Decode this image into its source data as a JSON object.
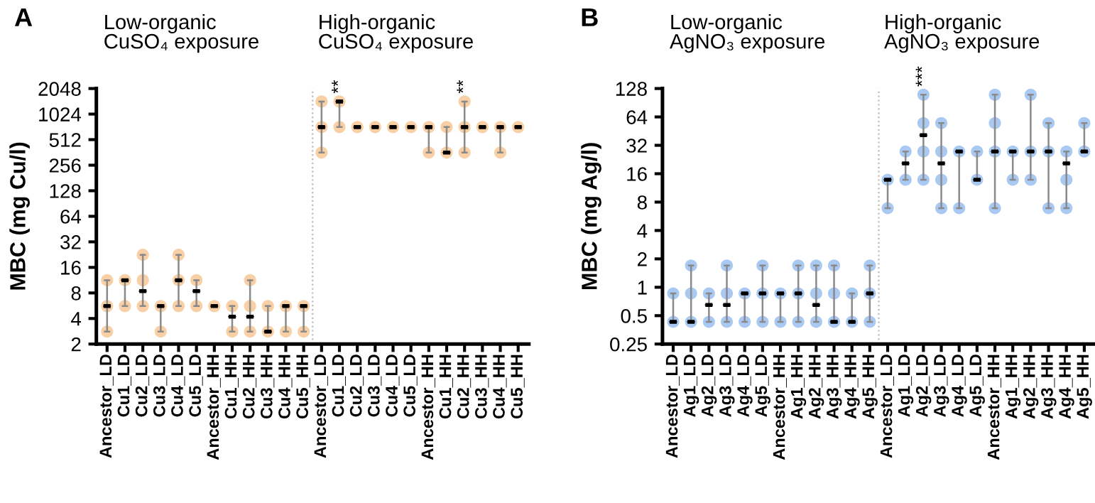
{
  "chart_data": [
    {
      "type": "scatter",
      "title": "A",
      "ylabel": "MBC (mg Cu/l)",
      "annotations": [
        "Low-organic\nCuSO₄ exposure",
        "High-organic\nCuSO₄ exposure"
      ],
      "categories": [
        "Ancestor_LD",
        "Cu1_LD",
        "Cu2_LD",
        "Cu3_LD",
        "Cu4_LD",
        "Cu5_LD",
        "Ancestor_HH",
        "Cu1_HH",
        "Cu2_HH",
        "Cu3_HH",
        "Cu4_HH",
        "Cu5_HH",
        "Ancestor_LD",
        "Cu1_LD",
        "Cu2_LD",
        "Cu3_LD",
        "Cu4_LD",
        "Cu5_LD",
        "Ancestor_HH",
        "Cu1_HH",
        "Cu2_HH",
        "Cu3_HH",
        "Cu4_HH",
        "Cu5_HH"
      ],
      "log": "y",
      "ylim": [
        2,
        2048
      ],
      "yticks": [
        2,
        4,
        8,
        16,
        32,
        64,
        128,
        256,
        512,
        1024,
        2048
      ],
      "grid": false,
      "legend": false,
      "marker": "circle",
      "series": [
        {
          "color": "#f9cfa5",
          "values": [
            2.8,
            5.6,
            5.6,
            2.8,
            5.6,
            5.6,
            5.6,
            2.8,
            2.8,
            2.8,
            2.8,
            2.8,
            360,
            720,
            720,
            720,
            720,
            720,
            360,
            360,
            360,
            720,
            360,
            720
          ]
        },
        {
          "color": "#f9cfa5",
          "values": [
            5.6,
            11.3,
            11.3,
            5.6,
            11.3,
            11.3,
            null,
            5.6,
            5.6,
            5.6,
            5.6,
            5.6,
            720,
            1440,
            null,
            null,
            null,
            null,
            720,
            720,
            720,
            null,
            720,
            null
          ],
          "value_labels": [
            null,
            null,
            null,
            null,
            null,
            null,
            null,
            null,
            null,
            null,
            null,
            null,
            null,
            "**",
            null,
            null,
            null,
            null,
            null,
            null,
            null,
            null,
            null,
            null
          ]
        },
        {
          "color": "#f9cfa5",
          "values": [
            11.3,
            null,
            22.5,
            null,
            22.5,
            null,
            null,
            null,
            11.3,
            null,
            null,
            null,
            1440,
            null,
            null,
            null,
            null,
            null,
            null,
            null,
            1440,
            null,
            null,
            null
          ],
          "value_labels": [
            null,
            null,
            null,
            null,
            null,
            null,
            null,
            null,
            null,
            null,
            null,
            null,
            null,
            null,
            null,
            null,
            null,
            null,
            null,
            null,
            "**",
            null,
            null,
            null
          ]
        },
        {
          "type": "box",
          "color": "#000000",
          "boxes": [
            {
              "low": 2.8,
              "q1": 5.6,
              "median": 5.6,
              "q3": 5.6,
              "high": 11.3
            },
            {
              "low": 5.6,
              "q1": 11.3,
              "median": 11.3,
              "q3": 11.3,
              "high": 11.3
            },
            {
              "low": 5.6,
              "q1": 8.4,
              "median": 8.4,
              "q3": 8.4,
              "high": 22.5
            },
            {
              "low": 2.8,
              "q1": 5.6,
              "median": 5.6,
              "q3": 5.6,
              "high": 5.6
            },
            {
              "low": 5.6,
              "q1": 11.3,
              "median": 11.3,
              "q3": 11.3,
              "high": 22.5
            },
            {
              "low": 5.6,
              "q1": 8.4,
              "median": 8.4,
              "q3": 8.4,
              "high": 11.3
            },
            {
              "low": 5.6,
              "q1": 5.6,
              "median": 5.6,
              "q3": 5.6,
              "high": 5.6
            },
            {
              "low": 2.8,
              "q1": 4.2,
              "median": 4.2,
              "q3": 4.2,
              "high": 5.6
            },
            {
              "low": 2.8,
              "q1": 4.2,
              "median": 4.2,
              "q3": 4.2,
              "high": 11.3
            },
            {
              "low": 2.8,
              "q1": 2.8,
              "median": 2.8,
              "q3": 2.8,
              "high": 5.6
            },
            {
              "low": 2.8,
              "q1": 5.6,
              "median": 5.6,
              "q3": 5.6,
              "high": 5.6
            },
            {
              "low": 2.8,
              "q1": 5.6,
              "median": 5.6,
              "q3": 5.6,
              "high": 5.6
            },
            {
              "low": 360,
              "q1": 720,
              "median": 720,
              "q3": 720,
              "high": 1440
            },
            {
              "low": 720,
              "q1": 1440,
              "median": 1440,
              "q3": 1440,
              "high": 1440
            },
            {
              "low": 720,
              "q1": 720,
              "median": 720,
              "q3": 720,
              "high": 720
            },
            {
              "low": 720,
              "q1": 720,
              "median": 720,
              "q3": 720,
              "high": 720
            },
            {
              "low": 720,
              "q1": 720,
              "median": 720,
              "q3": 720,
              "high": 720
            },
            {
              "low": 720,
              "q1": 720,
              "median": 720,
              "q3": 720,
              "high": 720
            },
            {
              "low": 360,
              "q1": 720,
              "median": 720,
              "q3": 720,
              "high": 720
            },
            {
              "low": 360,
              "q1": 360,
              "median": 360,
              "q3": 360,
              "high": 720
            },
            {
              "low": 360,
              "q1": 720,
              "median": 720,
              "q3": 720,
              "high": 1440
            },
            {
              "low": 720,
              "q1": 720,
              "median": 720,
              "q3": 720,
              "high": 720
            },
            {
              "low": 360,
              "q1": 720,
              "median": 720,
              "q3": 720,
              "high": 720
            },
            {
              "low": 720,
              "q1": 720,
              "median": 720,
              "q3": 720,
              "high": 720
            }
          ]
        }
      ]
    },
    {
      "type": "scatter",
      "title": "B",
      "ylabel": "MBC (mg Ag/l)",
      "annotations": [
        "Low-organic\nAgNO₃ exposure",
        "High-organic\nAgNO₃ exposure"
      ],
      "categories": [
        "Ancestor_LD",
        "Ag1_LD",
        "Ag2_LD",
        "Ag3_LD",
        "Ag4_LD",
        "Ag5_LD",
        "Ancestor_HH",
        "Ag1_HH",
        "Ag2_HH",
        "Ag3_HH",
        "Ag4_HH",
        "Ag5_HH",
        "Ancestor_LD",
        "Ag1_LD",
        "Ag2_LD",
        "Ag3_LD",
        "Ag4_LD",
        "Ag5_LD",
        "Ancestor_HH",
        "Ag1_HH",
        "Ag2_HH",
        "Ag3_HH",
        "Ag4_HH",
        "Ag5_HH"
      ],
      "log": "y",
      "ylim": [
        0.25,
        128
      ],
      "yticks": [
        0.25,
        0.5,
        1,
        2,
        4,
        8,
        16,
        32,
        64,
        128
      ],
      "grid": false,
      "legend": false,
      "marker": "circle",
      "series": [
        {
          "color": "#a9c9f2",
          "values": [
            0.43,
            0.43,
            0.43,
            0.43,
            0.43,
            0.43,
            0.43,
            0.43,
            0.43,
            0.43,
            0.43,
            0.43,
            6.9,
            13.8,
            13.8,
            6.9,
            6.9,
            13.8,
            6.9,
            13.8,
            13.8,
            6.9,
            6.9,
            27.5
          ]
        },
        {
          "color": "#a9c9f2",
          "values": [
            0.86,
            0.86,
            0.86,
            0.86,
            0.86,
            0.86,
            0.86,
            0.86,
            0.86,
            0.86,
            0.86,
            0.86,
            13.8,
            27.5,
            27.5,
            13.8,
            27.5,
            27.5,
            27.5,
            27.5,
            27.5,
            27.5,
            13.8,
            55
          ]
        },
        {
          "color": "#a9c9f2",
          "values": [
            null,
            1.7,
            null,
            1.7,
            null,
            1.7,
            null,
            1.7,
            1.7,
            1.7,
            null,
            1.7,
            null,
            null,
            55,
            27.5,
            null,
            null,
            55,
            null,
            110,
            55,
            27.5,
            null
          ]
        },
        {
          "color": "#a9c9f2",
          "values": [
            null,
            null,
            null,
            null,
            null,
            null,
            null,
            null,
            null,
            null,
            null,
            null,
            null,
            null,
            110,
            55,
            null,
            null,
            110,
            null,
            null,
            null,
            null,
            null
          ],
          "value_labels": [
            null,
            null,
            null,
            null,
            null,
            null,
            null,
            null,
            null,
            null,
            null,
            null,
            null,
            null,
            "***",
            null,
            null,
            null,
            null,
            null,
            null,
            null,
            null,
            null
          ]
        },
        {
          "type": "box",
          "color": "#000000",
          "boxes": [
            {
              "low": 0.43,
              "q1": 0.43,
              "median": 0.43,
              "q3": 0.43,
              "high": 0.86
            },
            {
              "low": 0.43,
              "q1": 0.43,
              "median": 0.43,
              "q3": 0.43,
              "high": 1.7
            },
            {
              "low": 0.43,
              "q1": 0.65,
              "median": 0.65,
              "q3": 0.65,
              "high": 0.86
            },
            {
              "low": 0.43,
              "q1": 0.65,
              "median": 0.65,
              "q3": 0.65,
              "high": 1.7
            },
            {
              "low": 0.43,
              "q1": 0.86,
              "median": 0.86,
              "q3": 0.86,
              "high": 0.86
            },
            {
              "low": 0.43,
              "q1": 0.86,
              "median": 0.86,
              "q3": 0.86,
              "high": 1.7
            },
            {
              "low": 0.43,
              "q1": 0.86,
              "median": 0.86,
              "q3": 0.86,
              "high": 0.86
            },
            {
              "low": 0.43,
              "q1": 0.86,
              "median": 0.86,
              "q3": 0.86,
              "high": 1.7
            },
            {
              "low": 0.43,
              "q1": 0.65,
              "median": 0.65,
              "q3": 0.65,
              "high": 1.7
            },
            {
              "low": 0.43,
              "q1": 0.43,
              "median": 0.43,
              "q3": 0.43,
              "high": 1.7
            },
            {
              "low": 0.43,
              "q1": 0.43,
              "median": 0.43,
              "q3": 0.43,
              "high": 0.86
            },
            {
              "low": 0.43,
              "q1": 0.86,
              "median": 0.86,
              "q3": 0.86,
              "high": 1.7
            },
            {
              "low": 6.9,
              "q1": 13.8,
              "median": 13.8,
              "q3": 13.8,
              "high": 13.8
            },
            {
              "low": 13.8,
              "q1": 20.6,
              "median": 20.6,
              "q3": 20.6,
              "high": 27.5
            },
            {
              "low": 13.8,
              "q1": 41,
              "median": 41,
              "q3": 41,
              "high": 110
            },
            {
              "low": 6.9,
              "q1": 20.6,
              "median": 20.6,
              "q3": 20.6,
              "high": 55
            },
            {
              "low": 6.9,
              "q1": 27.5,
              "median": 27.5,
              "q3": 27.5,
              "high": 27.5
            },
            {
              "low": 13.8,
              "q1": 13.8,
              "median": 13.8,
              "q3": 13.8,
              "high": 27.5
            },
            {
              "low": 6.9,
              "q1": 27.5,
              "median": 27.5,
              "q3": 27.5,
              "high": 110
            },
            {
              "low": 13.8,
              "q1": 27.5,
              "median": 27.5,
              "q3": 27.5,
              "high": 27.5
            },
            {
              "low": 13.8,
              "q1": 27.5,
              "median": 27.5,
              "q3": 27.5,
              "high": 110
            },
            {
              "low": 6.9,
              "q1": 27.5,
              "median": 27.5,
              "q3": 27.5,
              "high": 55
            },
            {
              "low": 6.9,
              "q1": 20.6,
              "median": 20.6,
              "q3": 20.6,
              "high": 27.5
            },
            {
              "low": 27.5,
              "q1": 27.5,
              "median": 27.5,
              "q3": 27.5,
              "high": 55
            }
          ]
        }
      ]
    }
  ]
}
